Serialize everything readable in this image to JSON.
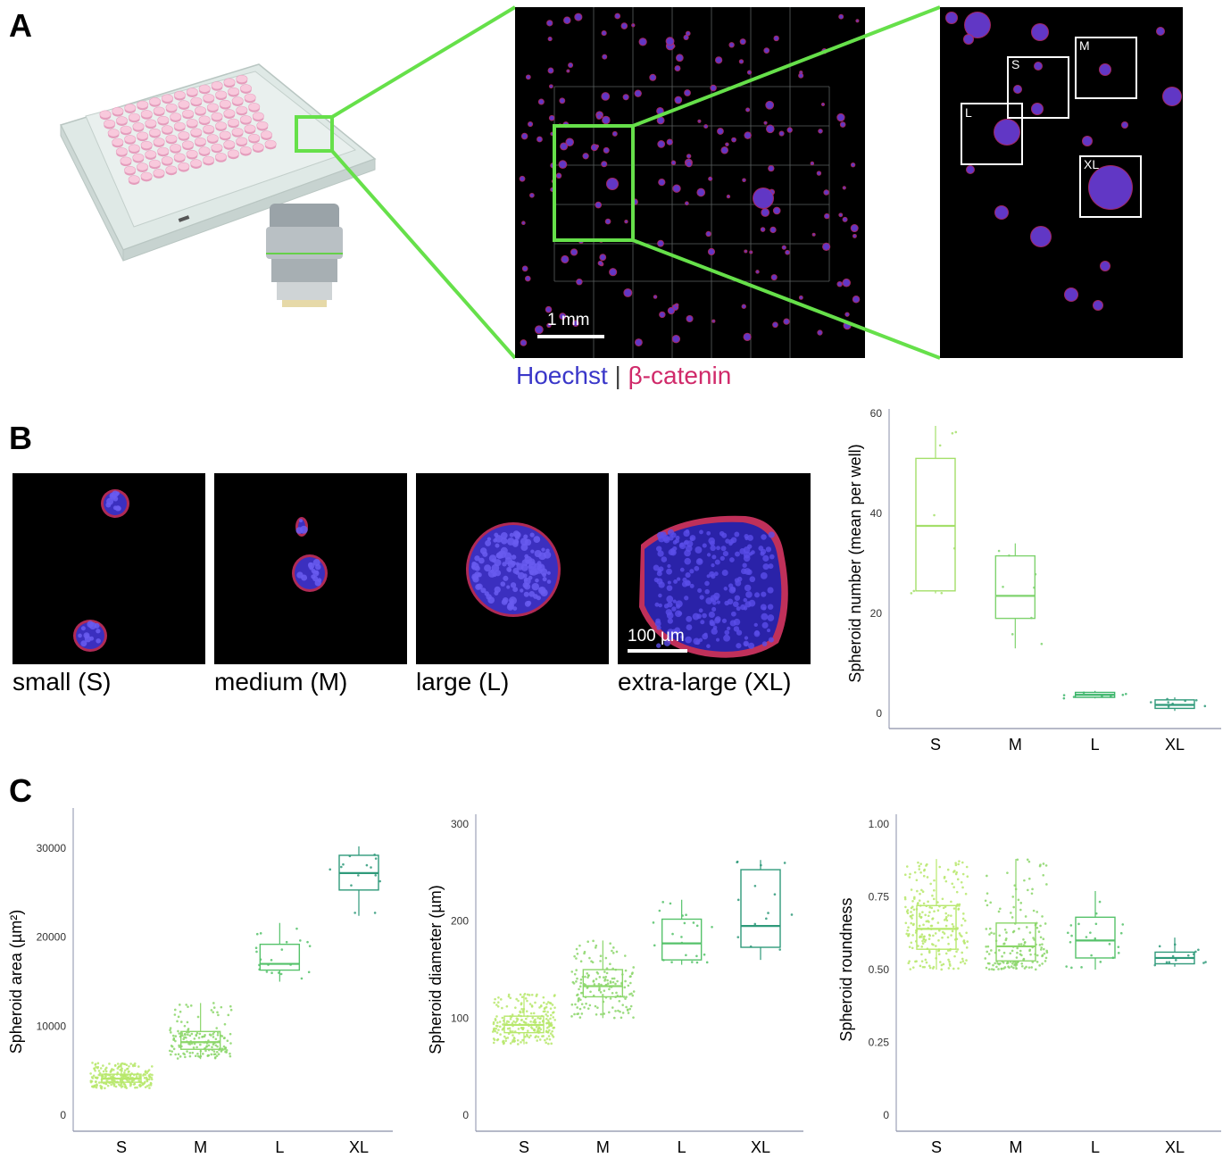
{
  "panels": {
    "a": {
      "letter": "A"
    },
    "b": {
      "letter": "B"
    },
    "c": {
      "letter": "C"
    }
  },
  "panel_a": {
    "scale_bar": "1 mm",
    "stain_legend": {
      "hoechst": "Hoechst",
      "separator": "|",
      "catenin": "β-catenin"
    },
    "zoom_boxes": [
      "S",
      "M",
      "L",
      "XL"
    ],
    "colors": {
      "well_pink": "#f4b6cf",
      "plate": "#dfe9e6",
      "highlight_green": "#66e04a",
      "hoechst_blue": "#3a37c9",
      "catenin_red": "#d02a6a"
    }
  },
  "panel_b": {
    "examples": [
      {
        "caption": "small (S)"
      },
      {
        "caption": "medium (M)"
      },
      {
        "caption": "large (L)"
      },
      {
        "caption": "extra-large (XL)"
      }
    ],
    "scale_bar": "100 µm"
  },
  "chart_data": [
    {
      "id": "b_count",
      "type": "box",
      "categories": [
        "S",
        "M",
        "L",
        "XL"
      ],
      "ylabel": "Spheroid number (mean per well)",
      "yticks": [
        "0",
        "20",
        "40",
        "60"
      ],
      "ylim": [
        0,
        60
      ],
      "colors": [
        "#a4df6a",
        "#7fd36e",
        "#3bb56a",
        "#2f9a7a"
      ],
      "boxes": [
        {
          "q1": 24.5,
          "median": 37.5,
          "q3": 51,
          "whisker_low": 24,
          "whisker_high": 57.5
        },
        {
          "q1": 19,
          "median": 23.5,
          "q3": 31.5,
          "whisker_low": 13,
          "whisker_high": 34
        },
        {
          "q1": 3.2,
          "median": 3.7,
          "q3": 4.2,
          "whisker_low": 3,
          "whisker_high": 4.5
        },
        {
          "q1": 1,
          "median": 1.7,
          "q3": 2.7,
          "whisker_low": 0.5,
          "whisker_high": 3.2
        }
      ]
    },
    {
      "id": "c_area",
      "type": "box",
      "categories": [
        "S",
        "M",
        "L",
        "XL"
      ],
      "ylabel": "Spheroid area (µm²)",
      "yticks": [
        "0",
        "10000",
        "20000",
        "30000"
      ],
      "ylim": [
        0,
        30000
      ],
      "colors": [
        "#b7e86b",
        "#8bd66a",
        "#55c26a",
        "#2f9a7a"
      ],
      "boxes": [
        {
          "q1": 3700,
          "median": 4100,
          "q3": 4600,
          "whisker_low": 3000,
          "whisker_high": 5900
        },
        {
          "q1": 7400,
          "median": 8200,
          "q3": 9400,
          "whisker_low": 6300,
          "whisker_high": 12600
        },
        {
          "q1": 16300,
          "median": 17000,
          "q3": 19200,
          "whisker_low": 15000,
          "whisker_high": 21600
        },
        {
          "q1": 25300,
          "median": 27200,
          "q3": 29200,
          "whisker_low": 22400,
          "whisker_high": 30200
        }
      ]
    },
    {
      "id": "c_diameter",
      "type": "box",
      "categories": [
        "S",
        "M",
        "L",
        "XL"
      ],
      "ylabel": "Spheroid diameter (µm)",
      "yticks": [
        "0",
        "100",
        "200",
        "300"
      ],
      "ylim": [
        0,
        300
      ],
      "colors": [
        "#b7e86b",
        "#8bd66a",
        "#55c26a",
        "#2f9a7a"
      ],
      "boxes": [
        {
          "q1": 85,
          "median": 93,
          "q3": 102,
          "whisker_low": 73,
          "whisker_high": 125
        },
        {
          "q1": 122,
          "median": 133,
          "q3": 150,
          "whisker_low": 100,
          "whisker_high": 180
        },
        {
          "q1": 160,
          "median": 177,
          "q3": 202,
          "whisker_low": 155,
          "whisker_high": 222
        },
        {
          "q1": 173,
          "median": 195,
          "q3": 253,
          "whisker_low": 160,
          "whisker_high": 263
        }
      ]
    },
    {
      "id": "c_roundness",
      "type": "box",
      "categories": [
        "S",
        "M",
        "L",
        "XL"
      ],
      "ylabel": "Spheroid roundness",
      "yticks": [
        "0",
        "0.25",
        "0.50",
        "0.75",
        "1.00"
      ],
      "ylim": [
        0,
        1
      ],
      "colors": [
        "#b7e86b",
        "#8bd66a",
        "#55c26a",
        "#2f9a7a"
      ],
      "boxes": [
        {
          "q1": 0.57,
          "median": 0.64,
          "q3": 0.72,
          "whisker_low": 0.5,
          "whisker_high": 0.88
        },
        {
          "q1": 0.53,
          "median": 0.58,
          "q3": 0.66,
          "whisker_low": 0.5,
          "whisker_high": 0.88
        },
        {
          "q1": 0.54,
          "median": 0.6,
          "q3": 0.68,
          "whisker_low": 0.5,
          "whisker_high": 0.77
        },
        {
          "q1": 0.52,
          "median": 0.54,
          "q3": 0.56,
          "whisker_low": 0.51,
          "whisker_high": 0.61
        }
      ]
    }
  ]
}
